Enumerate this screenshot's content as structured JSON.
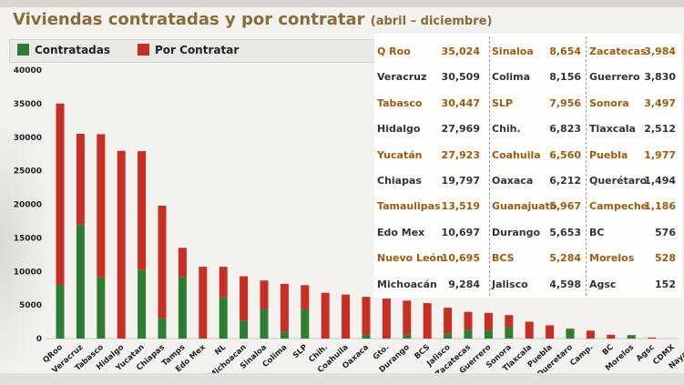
{
  "title": "Viviendas contratadas y por contratar",
  "subtitle": "(abril – diciembre)",
  "colors": {
    "contratadas": "#2e7d32",
    "por_contratar": "#c62f22",
    "gold_text": "#9c5a0f"
  },
  "chart_data": {
    "type": "bar",
    "stacked": true,
    "categories": [
      "QRoo",
      "Veracruz",
      "Tabasco",
      "Hidalgo",
      "Yucatan",
      "Chiapas",
      "Tamps",
      "Edo Mex",
      "NL",
      "Michoacan",
      "Sinaloa",
      "Colima",
      "SLP",
      "Chih.",
      "Coahuila",
      "Oaxaca",
      "Gto.",
      "Durango",
      "BCS",
      "Jalisco",
      "Zacatecas",
      "Guerrero",
      "Sonora",
      "Tlaxcala",
      "Puebla",
      "Queretaro",
      "Camp.",
      "BC",
      "Morelos",
      "Agsc",
      "CDMX",
      "Nayarit"
    ],
    "series": [
      {
        "name": "Contratadas",
        "values": [
          8000,
          17000,
          9200,
          0,
          10200,
          3000,
          9200,
          0,
          6200,
          2700,
          4400,
          1000,
          4400,
          0,
          0,
          600,
          0,
          600,
          0,
          800,
          1300,
          1300,
          1700,
          0,
          0,
          1400,
          0,
          0,
          500,
          0,
          0,
          0
        ]
      },
      {
        "name": "Por Contratar",
        "values": [
          27024,
          13509,
          21247,
          27969,
          17723,
          16797,
          4319,
          10697,
          4495,
          6584,
          4254,
          7156,
          3556,
          6823,
          6560,
          5612,
          5967,
          5053,
          5284,
          3798,
          2684,
          2530,
          1797,
          2512,
          1977,
          94,
          1186,
          576,
          28,
          152,
          0,
          0
        ]
      }
    ],
    "ylim": [
      0,
      40000
    ],
    "yticks": [
      "0",
      "5000",
      "10000",
      "15000",
      "20000",
      "25000",
      "30000",
      "35000",
      "40000"
    ],
    "legend": "top-left"
  },
  "table": [
    [
      {
        "name": "Q Roo",
        "value": "35,024",
        "gold": true
      },
      {
        "name": "Sinaloa",
        "value": "8,654",
        "gold": true
      },
      {
        "name": "Zacatecas",
        "value": "3,984",
        "gold": true
      }
    ],
    [
      {
        "name": "Veracruz",
        "value": "30,509",
        "gold": false
      },
      {
        "name": "Colima",
        "value": "8,156",
        "gold": false
      },
      {
        "name": "Guerrero",
        "value": "3,830",
        "gold": false
      }
    ],
    [
      {
        "name": "Tabasco",
        "value": "30,447",
        "gold": true
      },
      {
        "name": "SLP",
        "value": "7,956",
        "gold": true
      },
      {
        "name": "Sonora",
        "value": "3,497",
        "gold": true
      }
    ],
    [
      {
        "name": "Hidalgo",
        "value": "27,969",
        "gold": false
      },
      {
        "name": "Chih.",
        "value": "6,823",
        "gold": false
      },
      {
        "name": "Tlaxcala",
        "value": "2,512",
        "gold": false
      }
    ],
    [
      {
        "name": "Yucatán",
        "value": "27,923",
        "gold": true
      },
      {
        "name": "Coahuila",
        "value": "6,560",
        "gold": true
      },
      {
        "name": "Puebla",
        "value": "1,977",
        "gold": true
      }
    ],
    [
      {
        "name": "Chiapas",
        "value": "19,797",
        "gold": false
      },
      {
        "name": "Oaxaca",
        "value": "6,212",
        "gold": false
      },
      {
        "name": "Querétaro",
        "value": "1,494",
        "gold": false
      }
    ],
    [
      {
        "name": "Tamaulipas",
        "value": "13,519",
        "gold": true
      },
      {
        "name": "Guanajuato",
        "value": "5,967",
        "gold": true
      },
      {
        "name": "Campeche",
        "value": "1,186",
        "gold": true
      }
    ],
    [
      {
        "name": "Edo Mex",
        "value": "10,697",
        "gold": false
      },
      {
        "name": "Durango",
        "value": "5,653",
        "gold": false
      },
      {
        "name": "BC",
        "value": "576",
        "gold": false
      }
    ],
    [
      {
        "name": "Nuevo León",
        "value": "10,695",
        "gold": true
      },
      {
        "name": "BCS",
        "value": "5,284",
        "gold": true
      },
      {
        "name": "Morelos",
        "value": "528",
        "gold": true
      }
    ],
    [
      {
        "name": "Michoacán",
        "value": "9,284",
        "gold": false
      },
      {
        "name": "Jalisco",
        "value": "4,598",
        "gold": false
      },
      {
        "name": "Agsc",
        "value": "152",
        "gold": false
      }
    ]
  ]
}
